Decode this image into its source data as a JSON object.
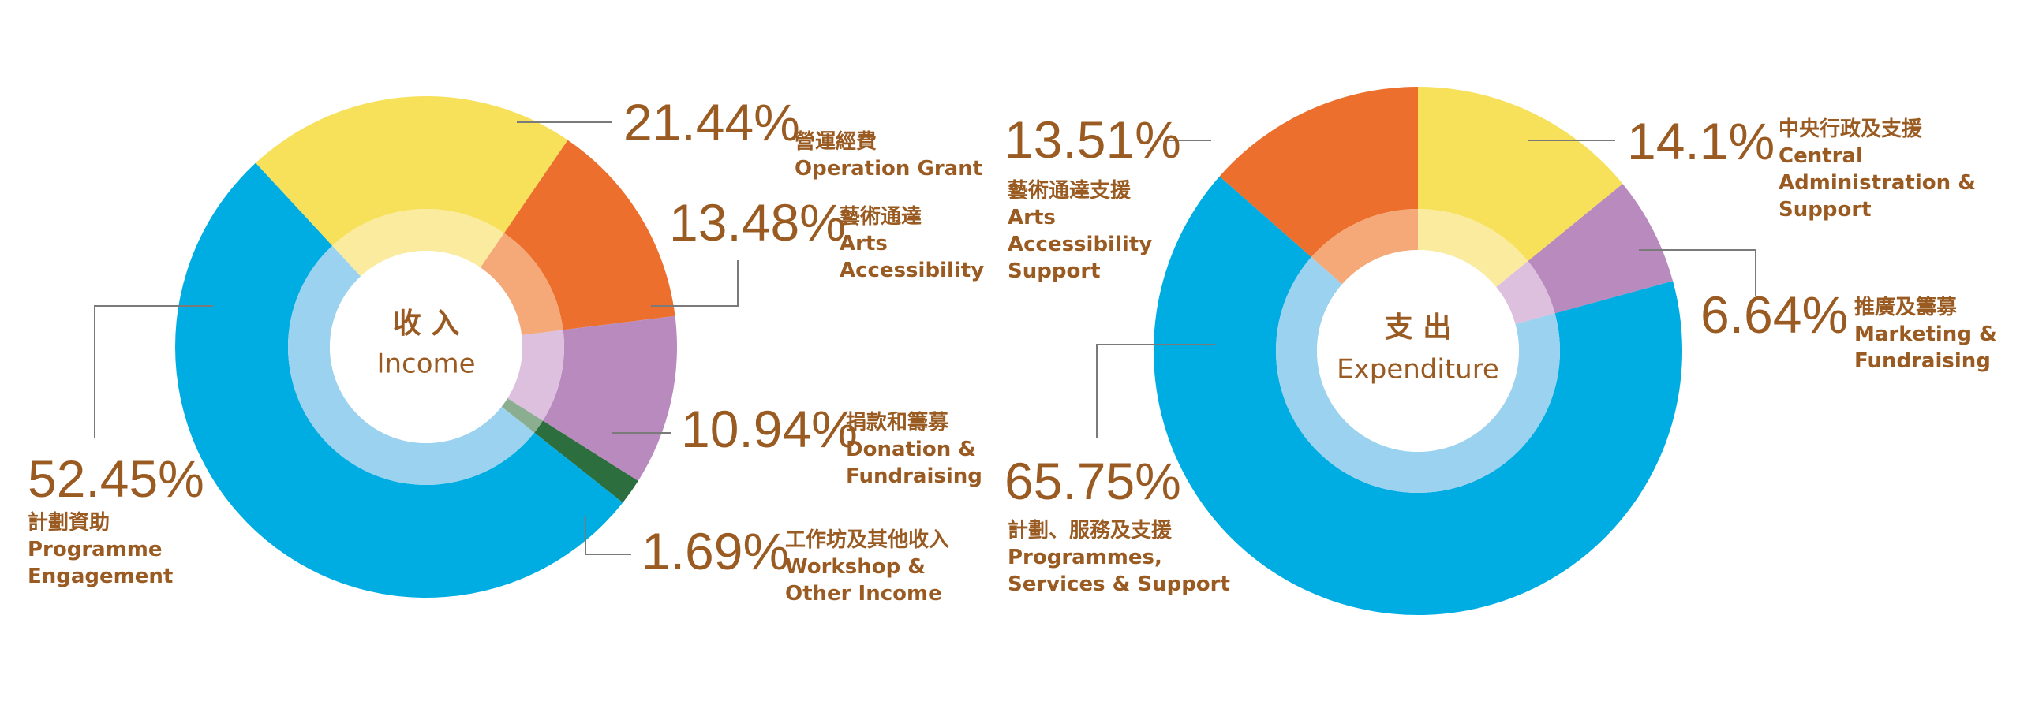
{
  "chart_data": [
    {
      "type": "pie",
      "center_label": {
        "zh": "收 入",
        "en": "Income"
      },
      "slices": [
        {
          "value": 21.44,
          "pct_label": "21.44%",
          "zh": "營運經費",
          "en": [
            "Operation Grant"
          ],
          "color": "#f7e05a",
          "inner_color": "#fbeb9e"
        },
        {
          "value": 13.48,
          "pct_label": "13.48%",
          "zh": "藝術通達",
          "en": [
            "Arts",
            "Accessibility"
          ],
          "color": "#ec6f2d",
          "inner_color": "#f5a878"
        },
        {
          "value": 10.94,
          "pct_label": "10.94%",
          "zh": "捐款和籌募",
          "en": [
            "Donation &",
            "Fundraising"
          ],
          "color": "#b98abd",
          "inner_color": "#dcc0de"
        },
        {
          "value": 1.69,
          "pct_label": "1.69%",
          "zh": "工作坊及其他收入",
          "en": [
            "Workshop &",
            "Other Income"
          ],
          "color": "#2d6e3e",
          "inner_color": "#8aae8f"
        },
        {
          "value": 52.45,
          "pct_label": "52.45%",
          "zh": "計劃資助",
          "en": [
            "Programme",
            "Engagement"
          ],
          "color": "#00ade2",
          "inner_color": "#9bd2f0"
        }
      ]
    },
    {
      "type": "pie",
      "center_label": {
        "zh": "支 出",
        "en": "Expenditure"
      },
      "slices": [
        {
          "value": 14.1,
          "pct_label": "14.1%",
          "zh": "中央行政及支援",
          "en": [
            "Central",
            "Administration &",
            "Support"
          ],
          "color": "#f7e05a",
          "inner_color": "#fbeb9e"
        },
        {
          "value": 6.64,
          "pct_label": "6.64%",
          "zh": "推廣及籌募",
          "en": [
            "Marketing &",
            "Fundraising"
          ],
          "color": "#b98abd",
          "inner_color": "#dcc0de"
        },
        {
          "value": 65.75,
          "pct_label": "65.75%",
          "zh": "計劃、服務及支援",
          "en": [
            "Programmes,",
            "Services & Support"
          ],
          "color": "#00ade2",
          "inner_color": "#9bd2f0"
        },
        {
          "value": 13.51,
          "pct_label": "13.51%",
          "zh": "藝術通達支援",
          "en": [
            "Arts",
            "Accessibility",
            "Support"
          ],
          "color": "#ec6f2d",
          "inner_color": "#f5a878"
        }
      ]
    }
  ]
}
